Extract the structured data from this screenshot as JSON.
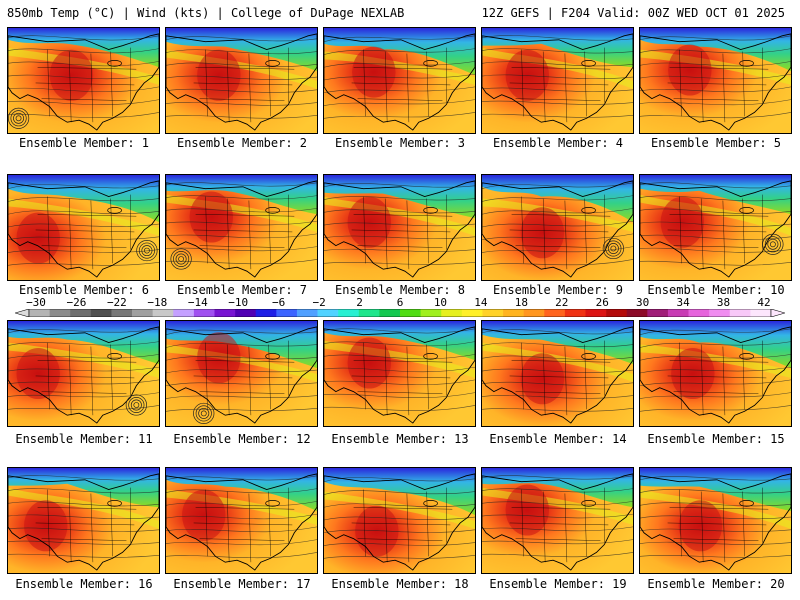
{
  "header": {
    "left": "850mb Temp (°C) | Wind (kts) | College of DuPage NEXLAB",
    "right": "12Z GEFS | F204 Valid: 00Z WED OCT 01 2025"
  },
  "members": [
    {
      "label": "Ensemble Member: 1",
      "heat": [
        0.42,
        0.45
      ],
      "low": [
        0.07,
        0.86
      ]
    },
    {
      "label": "Ensemble Member: 2",
      "heat": [
        0.35,
        0.45
      ],
      "low": null
    },
    {
      "label": "Ensemble Member: 3",
      "heat": [
        0.33,
        0.42
      ],
      "low": null
    },
    {
      "label": "Ensemble Member: 4",
      "heat": [
        0.3,
        0.45
      ],
      "low": null
    },
    {
      "label": "Ensemble Member: 5",
      "heat": [
        0.33,
        0.4
      ],
      "low": null
    },
    {
      "label": "Ensemble Member: 6",
      "heat": [
        0.2,
        0.6
      ],
      "low": [
        0.92,
        0.72
      ]
    },
    {
      "label": "Ensemble Member: 7",
      "heat": [
        0.3,
        0.4
      ],
      "low": [
        0.1,
        0.8
      ]
    },
    {
      "label": "Ensemble Member: 8",
      "heat": [
        0.3,
        0.45
      ],
      "low": null
    },
    {
      "label": "Ensemble Member: 9",
      "heat": [
        0.4,
        0.55
      ],
      "low": [
        0.87,
        0.7
      ]
    },
    {
      "label": "Ensemble Member: 10",
      "heat": [
        0.28,
        0.45
      ],
      "low": [
        0.88,
        0.66
      ]
    },
    {
      "label": "Ensemble Member: 11",
      "heat": [
        0.2,
        0.5
      ],
      "low": [
        0.85,
        0.8
      ]
    },
    {
      "label": "Ensemble Member: 12",
      "heat": [
        0.35,
        0.35
      ],
      "low": [
        0.25,
        0.88
      ]
    },
    {
      "label": "Ensemble Member: 13",
      "heat": [
        0.3,
        0.4
      ],
      "low": null
    },
    {
      "label": "Ensemble Member: 14",
      "heat": [
        0.4,
        0.55
      ],
      "low": null
    },
    {
      "label": "Ensemble Member: 15",
      "heat": [
        0.35,
        0.5
      ],
      "low": null
    },
    {
      "label": "Ensemble Member: 16",
      "heat": [
        0.25,
        0.55
      ],
      "low": null
    },
    {
      "label": "Ensemble Member: 17",
      "heat": [
        0.25,
        0.45
      ],
      "low": null
    },
    {
      "label": "Ensemble Member: 18",
      "heat": [
        0.35,
        0.6
      ],
      "low": null
    },
    {
      "label": "Ensemble Member: 19",
      "heat": [
        0.3,
        0.4
      ],
      "low": null
    },
    {
      "label": "Ensemble Member: 20",
      "heat": [
        0.4,
        0.55
      ],
      "low": null
    }
  ],
  "colorbar": {
    "unit": "°C",
    "min": -30,
    "max": 42,
    "ticks": [
      "−30",
      "−26",
      "−22",
      "−18",
      "−14",
      "−10",
      "−6",
      "−2",
      "2",
      "6",
      "10",
      "14",
      "18",
      "22",
      "26",
      "30",
      "34",
      "38",
      "42"
    ],
    "colors": [
      "#b4b4b4",
      "#8c8c8c",
      "#6e6e6e",
      "#505050",
      "#787878",
      "#a0a0a0",
      "#c8c8c8",
      "#c4a0ff",
      "#a050f0",
      "#7814d2",
      "#5000b4",
      "#1e1ee6",
      "#3c64ff",
      "#50a0ff",
      "#50d2ff",
      "#28f0d2",
      "#1ee68c",
      "#14c850",
      "#50dc14",
      "#a0f01e",
      "#e6f01e",
      "#fff028",
      "#ffd228",
      "#ffb41e",
      "#ff961e",
      "#ff641e",
      "#f03214",
      "#dc1414",
      "#b40a0a",
      "#8c0a28",
      "#a01e78",
      "#c83cb4",
      "#e664dc",
      "#f08cf0",
      "#f8c8f8",
      "#fde6fd"
    ]
  }
}
